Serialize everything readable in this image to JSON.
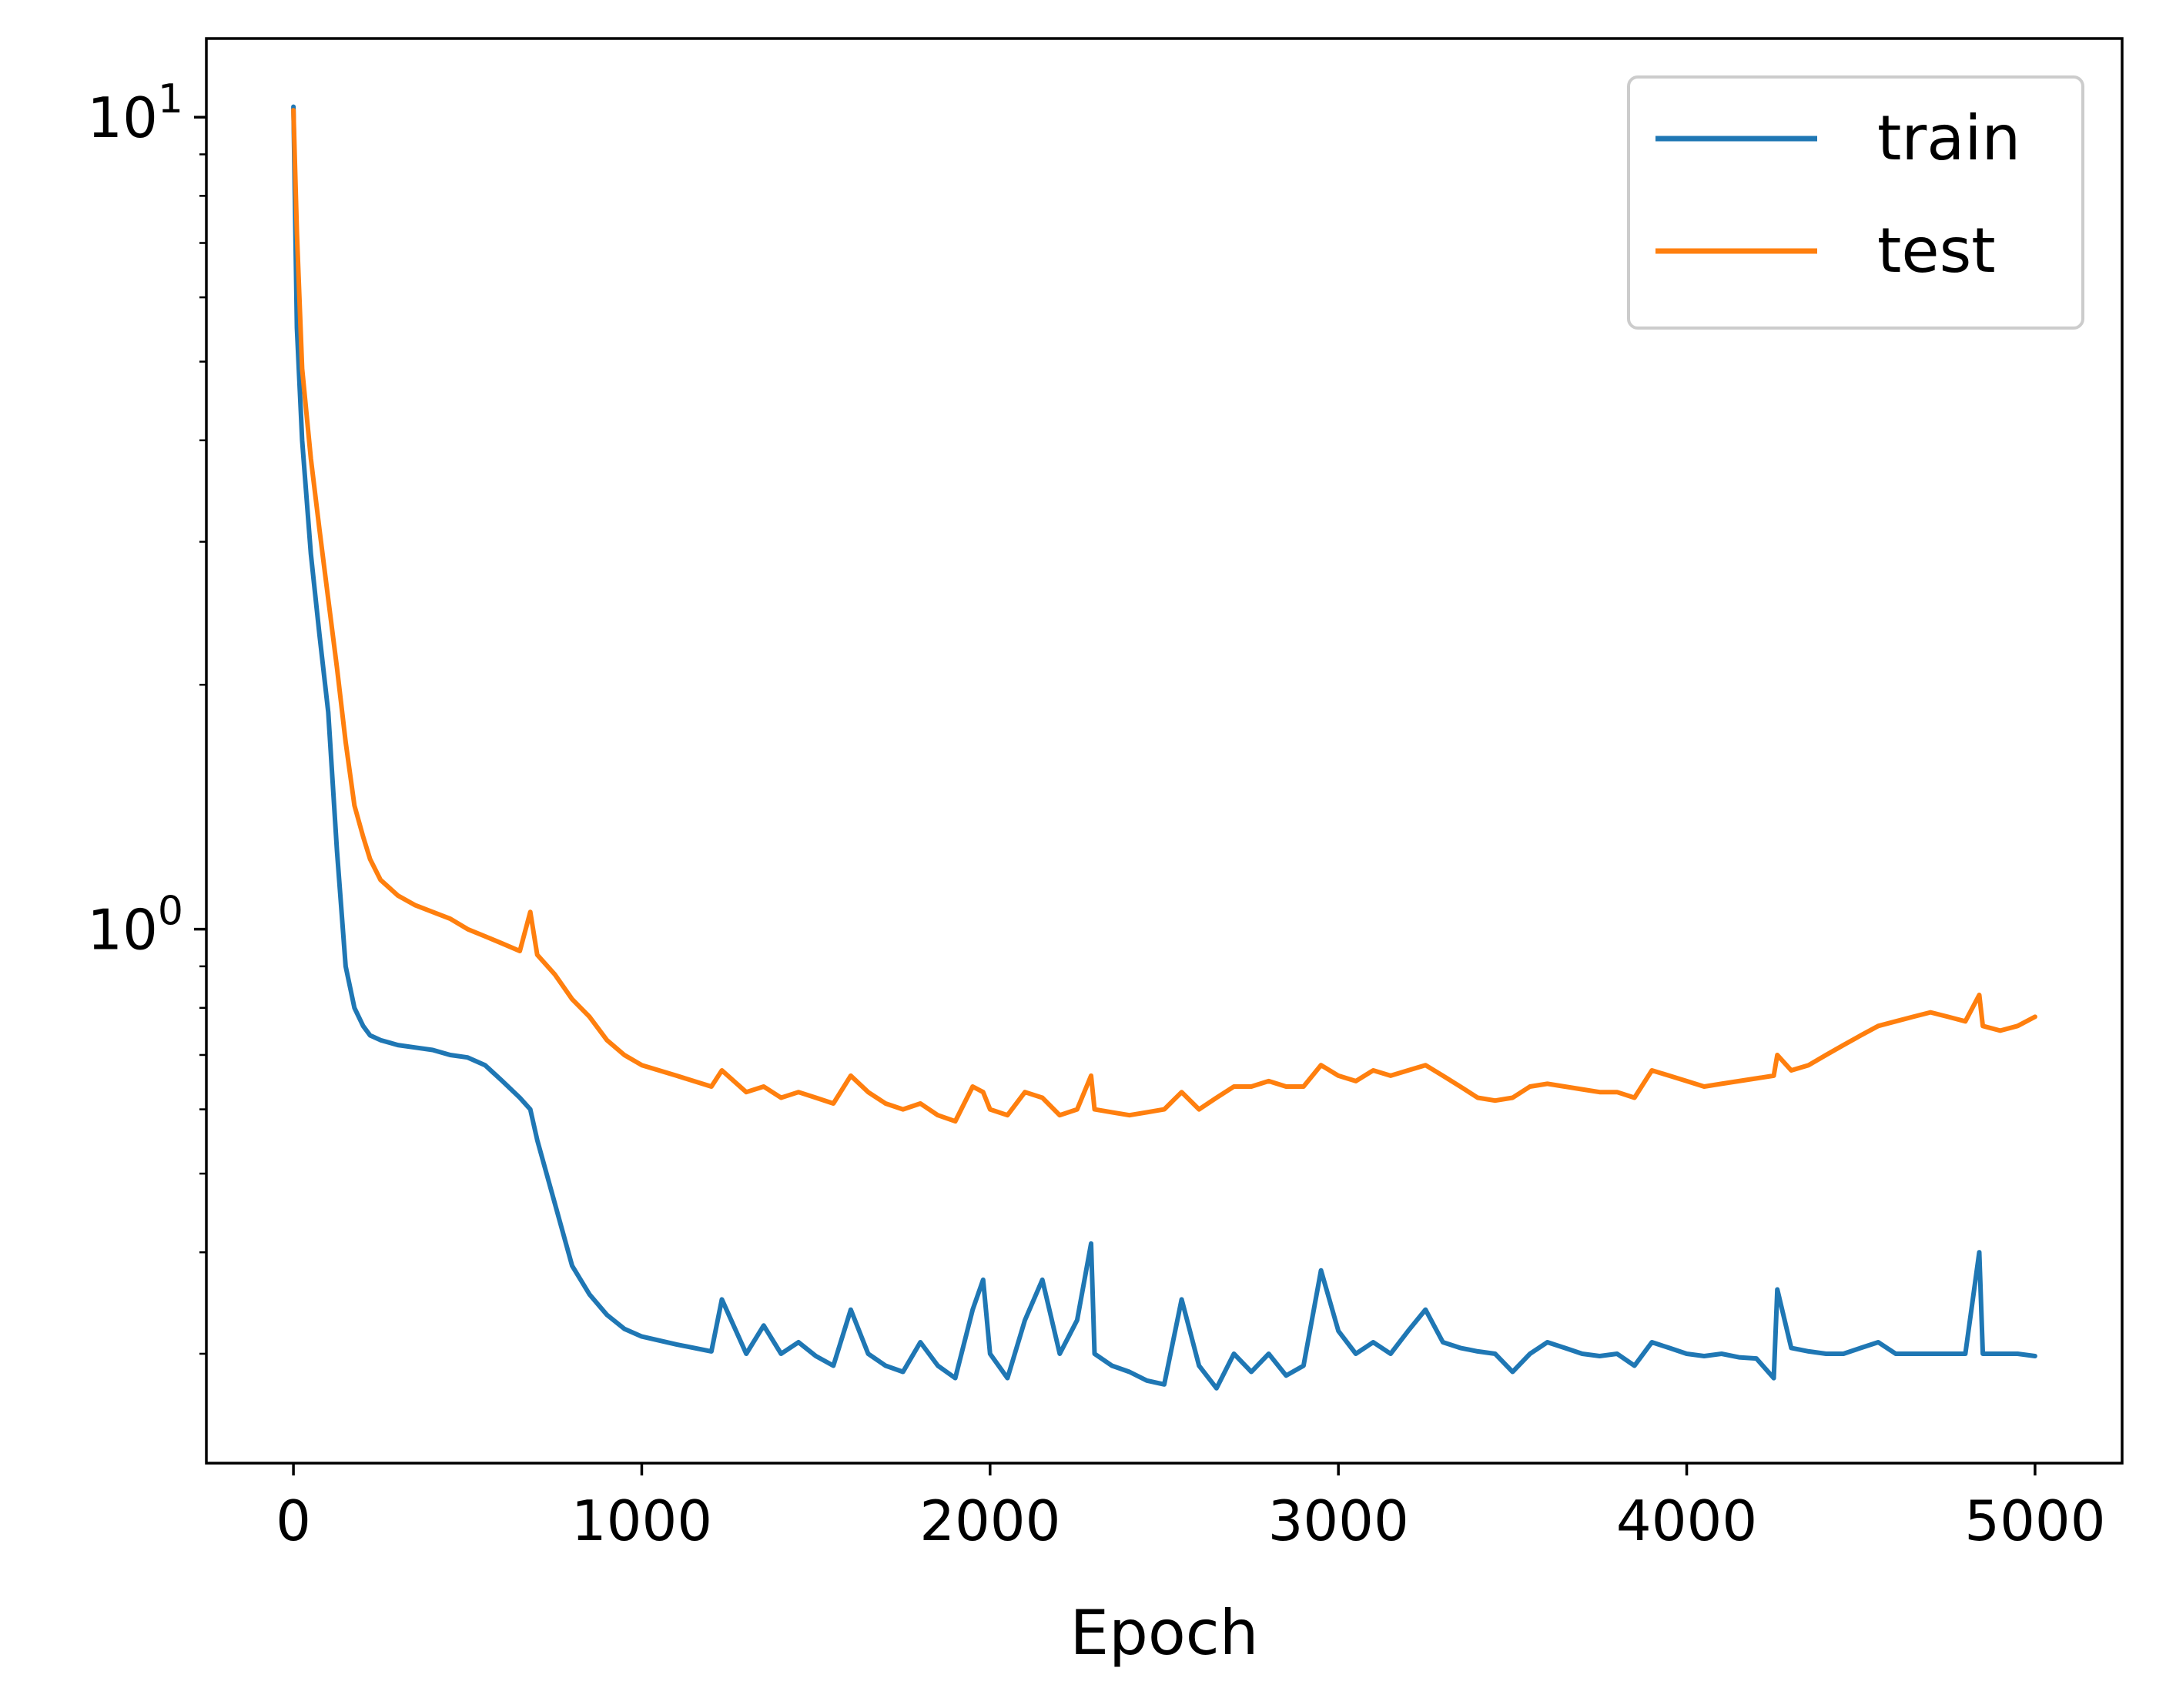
{
  "chart_data": {
    "type": "line",
    "xlabel": "Epoch",
    "ylabel": "",
    "title": "",
    "xscale": "linear",
    "yscale": "log",
    "xlim": [
      -250,
      5250
    ],
    "ylim": [
      0.22,
      12.5
    ],
    "grid": false,
    "legend_position": "top-right",
    "xticks": [
      {
        "value": 0,
        "label": "0"
      },
      {
        "value": 1000,
        "label": "1000"
      },
      {
        "value": 2000,
        "label": "2000"
      },
      {
        "value": 3000,
        "label": "3000"
      },
      {
        "value": 4000,
        "label": "4000"
      },
      {
        "value": 5000,
        "label": "5000"
      }
    ],
    "yticks": [
      {
        "value": 1,
        "base": "10",
        "exp": "0"
      },
      {
        "value": 10,
        "base": "10",
        "exp": "1"
      }
    ],
    "series": [
      {
        "name": "train",
        "color": "#1f77b4",
        "x": [
          0,
          10,
          25,
          50,
          75,
          100,
          125,
          150,
          175,
          200,
          220,
          250,
          300,
          350,
          400,
          450,
          500,
          550,
          600,
          650,
          680,
          700,
          750,
          800,
          850,
          900,
          950,
          1000,
          1100,
          1200,
          1230,
          1300,
          1350,
          1400,
          1450,
          1500,
          1550,
          1600,
          1650,
          1700,
          1750,
          1800,
          1850,
          1900,
          1950,
          1980,
          2000,
          2050,
          2100,
          2150,
          2200,
          2250,
          2290,
          2300,
          2350,
          2400,
          2450,
          2500,
          2550,
          2600,
          2650,
          2700,
          2750,
          2800,
          2850,
          2900,
          2950,
          3000,
          3050,
          3100,
          3150,
          3200,
          3250,
          3300,
          3350,
          3400,
          3450,
          3500,
          3550,
          3600,
          3650,
          3700,
          3750,
          3800,
          3850,
          3900,
          3950,
          4000,
          4050,
          4100,
          4150,
          4200,
          4250,
          4260,
          4300,
          4350,
          4400,
          4450,
          4500,
          4550,
          4600,
          4650,
          4700,
          4750,
          4800,
          4840,
          4850,
          4900,
          4950,
          5000
        ],
        "y": [
          10.3,
          5.5,
          4.0,
          2.9,
          2.3,
          1.85,
          1.25,
          0.9,
          0.8,
          0.76,
          0.74,
          0.73,
          0.72,
          0.715,
          0.71,
          0.7,
          0.695,
          0.68,
          0.65,
          0.62,
          0.6,
          0.55,
          0.46,
          0.385,
          0.355,
          0.335,
          0.322,
          0.315,
          0.308,
          0.302,
          0.35,
          0.3,
          0.325,
          0.3,
          0.31,
          0.298,
          0.29,
          0.34,
          0.3,
          0.29,
          0.285,
          0.31,
          0.29,
          0.28,
          0.34,
          0.37,
          0.3,
          0.28,
          0.33,
          0.37,
          0.3,
          0.33,
          0.41,
          0.3,
          0.29,
          0.285,
          0.278,
          0.275,
          0.35,
          0.29,
          0.272,
          0.3,
          0.285,
          0.3,
          0.282,
          0.29,
          0.38,
          0.32,
          0.3,
          0.31,
          0.3,
          0.32,
          0.34,
          0.31,
          0.305,
          0.302,
          0.3,
          0.285,
          0.3,
          0.31,
          0.305,
          0.3,
          0.298,
          0.3,
          0.29,
          0.31,
          0.305,
          0.3,
          0.298,
          0.3,
          0.297,
          0.296,
          0.28,
          0.36,
          0.305,
          0.302,
          0.3,
          0.3,
          0.305,
          0.31,
          0.3,
          0.3,
          0.3,
          0.3,
          0.3,
          0.4,
          0.3,
          0.3,
          0.3,
          0.298
        ]
      },
      {
        "name": "test",
        "color": "#ff7f0e",
        "x": [
          0,
          10,
          25,
          50,
          75,
          100,
          125,
          150,
          175,
          200,
          220,
          250,
          300,
          350,
          400,
          450,
          500,
          550,
          600,
          650,
          680,
          700,
          750,
          800,
          850,
          900,
          950,
          1000,
          1100,
          1200,
          1230,
          1300,
          1350,
          1400,
          1450,
          1500,
          1550,
          1600,
          1650,
          1700,
          1750,
          1800,
          1850,
          1900,
          1950,
          1980,
          2000,
          2050,
          2100,
          2150,
          2200,
          2250,
          2290,
          2300,
          2350,
          2400,
          2450,
          2500,
          2550,
          2600,
          2650,
          2700,
          2750,
          2800,
          2850,
          2900,
          2950,
          3000,
          3050,
          3100,
          3150,
          3200,
          3250,
          3300,
          3350,
          3400,
          3450,
          3500,
          3550,
          3600,
          3650,
          3700,
          3750,
          3800,
          3850,
          3900,
          3950,
          4000,
          4050,
          4100,
          4150,
          4200,
          4250,
          4260,
          4300,
          4350,
          4400,
          4450,
          4500,
          4550,
          4600,
          4650,
          4700,
          4750,
          4800,
          4840,
          4850,
          4900,
          4950,
          5000
        ],
        "y": [
          10.2,
          7.2,
          4.9,
          3.8,
          3.1,
          2.55,
          2.1,
          1.7,
          1.42,
          1.3,
          1.22,
          1.15,
          1.1,
          1.07,
          1.05,
          1.03,
          1.0,
          0.98,
          0.96,
          0.94,
          1.05,
          0.93,
          0.88,
          0.82,
          0.78,
          0.73,
          0.7,
          0.68,
          0.66,
          0.64,
          0.67,
          0.63,
          0.64,
          0.62,
          0.63,
          0.62,
          0.61,
          0.66,
          0.63,
          0.61,
          0.6,
          0.61,
          0.59,
          0.58,
          0.64,
          0.63,
          0.6,
          0.59,
          0.63,
          0.62,
          0.59,
          0.6,
          0.66,
          0.6,
          0.595,
          0.59,
          0.595,
          0.6,
          0.63,
          0.6,
          0.62,
          0.64,
          0.64,
          0.65,
          0.64,
          0.64,
          0.68,
          0.66,
          0.65,
          0.67,
          0.66,
          0.67,
          0.68,
          0.66,
          0.64,
          0.62,
          0.615,
          0.62,
          0.64,
          0.645,
          0.64,
          0.635,
          0.63,
          0.63,
          0.62,
          0.67,
          0.66,
          0.65,
          0.64,
          0.645,
          0.65,
          0.655,
          0.66,
          0.7,
          0.67,
          0.68,
          0.7,
          0.72,
          0.74,
          0.76,
          0.77,
          0.78,
          0.79,
          0.78,
          0.77,
          0.83,
          0.76,
          0.75,
          0.76,
          0.78
        ]
      }
    ]
  }
}
